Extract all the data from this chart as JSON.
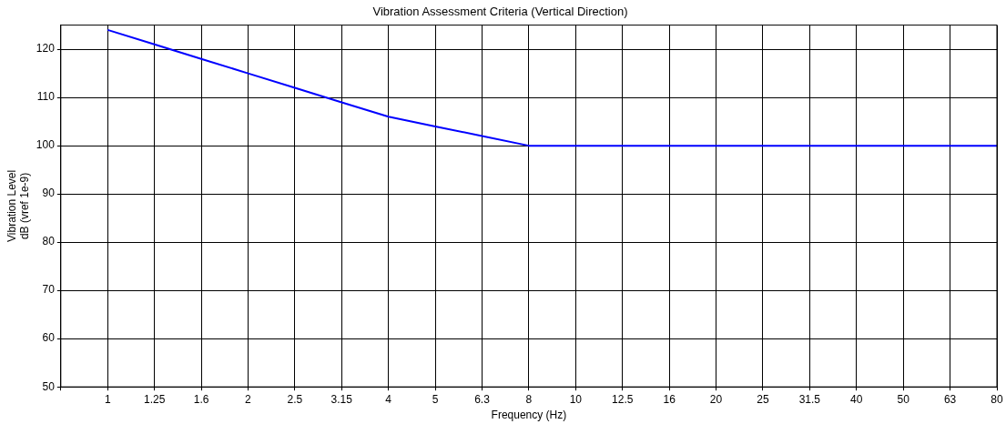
{
  "chart_data": {
    "type": "line",
    "title": "Vibration Assessment Criteria (Vertical Direction)",
    "xlabel": "Frequency (Hz)",
    "ylabel": "Vibration Level\ndB (vref 1e-9)",
    "categories": [
      null,
      "1",
      "1.25",
      "1.6",
      "2",
      "2.5",
      "3.15",
      "4",
      "5",
      "6.3",
      "8",
      "10",
      "12.5",
      "16",
      "20",
      "25",
      "31.5",
      "40",
      "50",
      "63",
      "80"
    ],
    "series": [
      {
        "color": "#0000ff",
        "values": [
          null,
          124,
          121,
          118,
          115,
          112,
          109,
          106,
          104,
          102,
          100,
          100,
          100,
          100,
          100,
          100,
          100,
          100,
          100,
          100,
          100
        ]
      }
    ],
    "ylim": [
      50,
      125
    ],
    "yticks": [
      50,
      60,
      70,
      80,
      90,
      100,
      110,
      120
    ],
    "grid": true,
    "legend": false,
    "marker": "none",
    "line_style": "solid"
  }
}
